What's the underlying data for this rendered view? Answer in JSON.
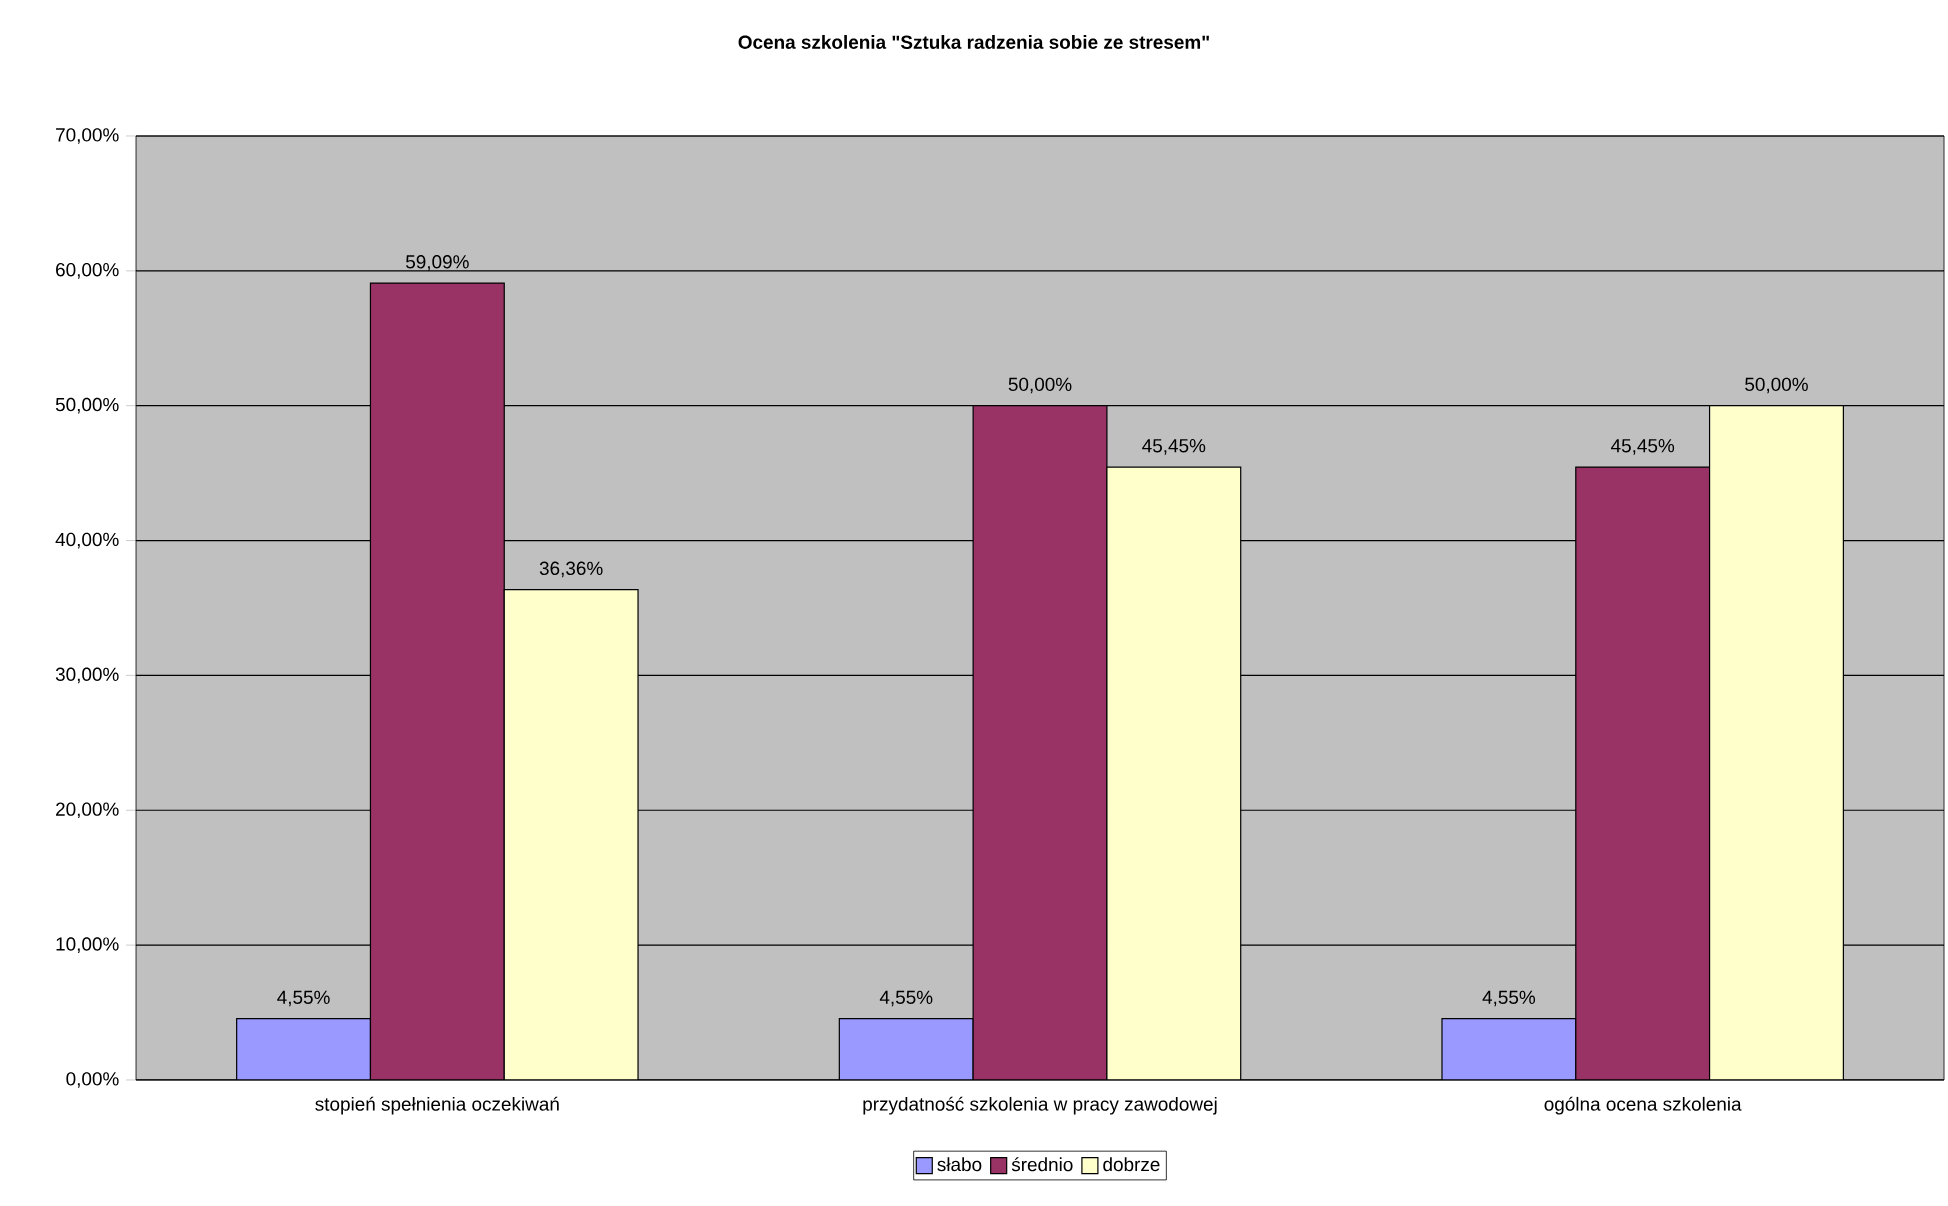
{
  "chart_data": {
    "type": "bar",
    "title": "Ocena szkolenia \"Sztuka radzenia sobie ze stresem\"",
    "categories": [
      "stopień spełnienia oczekiwań",
      "przydatność szkolenia w pracy zawodowej",
      "ogólna ocena szkolenia"
    ],
    "series": [
      {
        "name": "słabo",
        "color": "#9999ff",
        "values": [
          4.55,
          4.55,
          4.55
        ],
        "value_labels": [
          "4,55%",
          "4,55%",
          "4,55%"
        ]
      },
      {
        "name": "średnio",
        "color": "#993366",
        "values": [
          59.09,
          50.0,
          45.45
        ],
        "value_labels": [
          "59,09%",
          "50,00%",
          "45,45%"
        ]
      },
      {
        "name": "dobrze",
        "color": "#ffffcc",
        "values": [
          36.36,
          45.45,
          50.0
        ],
        "value_labels": [
          "36,36%",
          "45,45%",
          "50,00%"
        ]
      }
    ],
    "ylim": [
      0,
      70
    ],
    "yticks": [
      {
        "value": 0,
        "label": "0,00%"
      },
      {
        "value": 10,
        "label": "10,00%"
      },
      {
        "value": 20,
        "label": "20,00%"
      },
      {
        "value": 30,
        "label": "30,00%"
      },
      {
        "value": 40,
        "label": "40,00%"
      },
      {
        "value": 50,
        "label": "50,00%"
      },
      {
        "value": 60,
        "label": "60,00%"
      },
      {
        "value": 70,
        "label": "70,00%"
      }
    ],
    "grid": "y",
    "legend": "bottom"
  }
}
